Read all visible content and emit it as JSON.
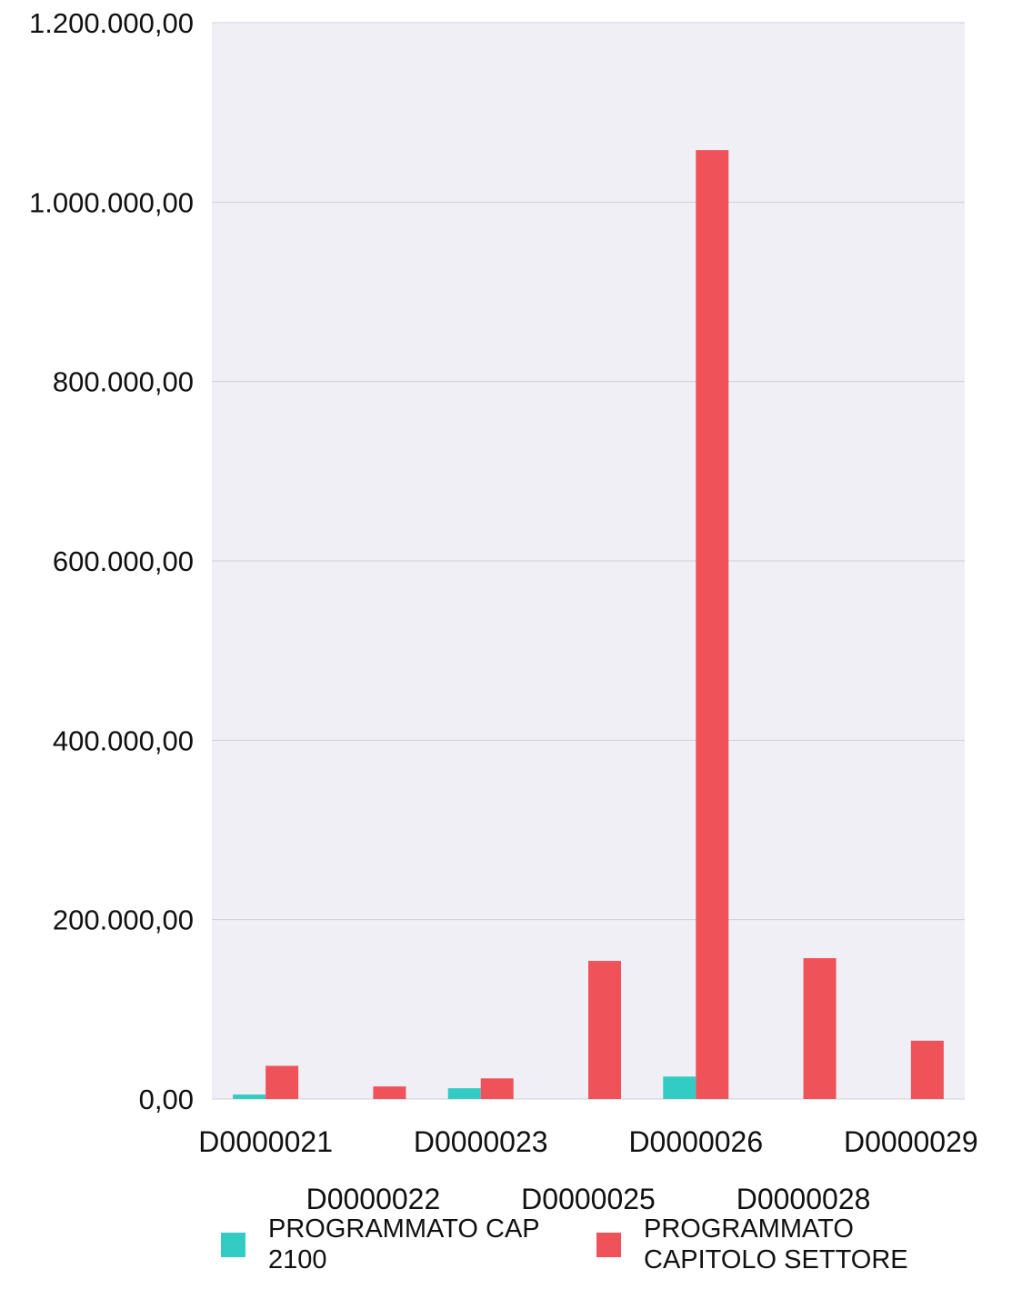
{
  "chart_data": {
    "type": "bar",
    "title": "",
    "xlabel": "",
    "ylabel": "",
    "categories": [
      "D0000021",
      "D0000022",
      "D0000023",
      "D0000025",
      "D0000026",
      "D0000028",
      "D0000029"
    ],
    "series": [
      {
        "name": "PROGRAMMATO CAP 2100",
        "legend_lines": [
          "PROGRAMMATO CAP",
          "2100"
        ],
        "color": "#33ccc4",
        "values": [
          5000,
          0,
          12000,
          0,
          25000,
          0,
          0
        ]
      },
      {
        "name": "PROGRAMMATO CAPITOLO SETTORE",
        "legend_lines": [
          "PROGRAMMATO",
          "CAPITOLO SETTORE"
        ],
        "color": "#ef5259",
        "values": [
          37000,
          14000,
          23000,
          154000,
          1058000,
          157000,
          65000
        ]
      }
    ],
    "ylim": [
      0,
      1200000
    ],
    "yticks": [
      0,
      200000,
      400000,
      600000,
      800000,
      1000000,
      1200000
    ],
    "ytick_labels": [
      "0,00",
      "200.000,00",
      "400.000,00",
      "600.000,00",
      "800.000,00",
      "1.000.000,00",
      "1.200.000,00"
    ],
    "grid": true,
    "plot_background": "#efeff5",
    "grid_color": "#cfcfd6",
    "legend_position": "bottom"
  }
}
